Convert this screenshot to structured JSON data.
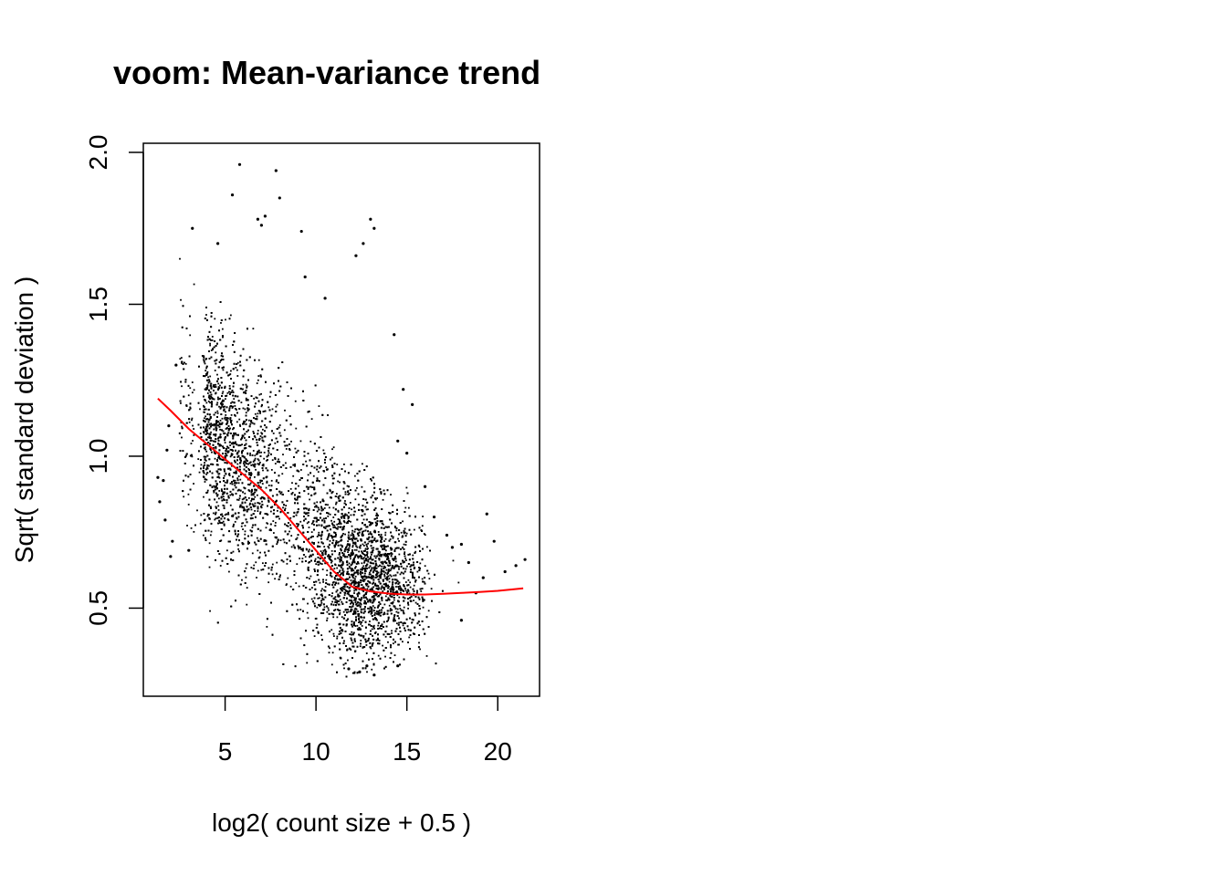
{
  "chart_data": {
    "type": "scatter",
    "title": "voom: Mean-variance trend",
    "xlabel": "log2( count size + 0.5 )",
    "ylabel": "Sqrt( standard deviation )",
    "xlim": [
      0.5,
      22.3
    ],
    "ylim": [
      0.21,
      2.03
    ],
    "x_ticks": [
      5,
      10,
      15,
      20
    ],
    "y_ticks": [
      0.5,
      1.0,
      1.5,
      2.0
    ],
    "x_tick_labels": [
      "5",
      "10",
      "15",
      "20"
    ],
    "y_tick_labels": [
      "0.5",
      "1.0",
      "1.5",
      "2.0"
    ],
    "grid": false,
    "legend": "none",
    "point_color": "#000000",
    "trend_color": "#ff0000",
    "series": [
      {
        "type": "scatter",
        "points": [
          [
            5.8,
            1.96
          ],
          [
            7.8,
            1.94
          ],
          [
            5.4,
            1.86
          ],
          [
            8.0,
            1.85
          ],
          [
            7.2,
            1.79
          ],
          [
            6.8,
            1.78
          ],
          [
            7.0,
            1.76
          ],
          [
            13.0,
            1.78
          ],
          [
            13.2,
            1.75
          ],
          [
            9.2,
            1.74
          ],
          [
            9.4,
            1.59
          ],
          [
            10.5,
            1.52
          ],
          [
            12.2,
            1.66
          ],
          [
            12.6,
            1.7
          ],
          [
            3.2,
            1.75
          ],
          [
            4.6,
            1.7
          ],
          [
            14.3,
            1.4
          ],
          [
            14.8,
            1.22
          ],
          [
            15.3,
            1.17
          ],
          [
            14.5,
            1.05
          ],
          [
            15.0,
            1.01
          ],
          [
            16.0,
            0.9
          ],
          [
            16.5,
            0.8
          ],
          [
            17.2,
            0.74
          ],
          [
            17.5,
            0.7
          ],
          [
            18.0,
            0.71
          ],
          [
            18.4,
            0.65
          ],
          [
            19.4,
            0.81
          ],
          [
            19.8,
            0.72
          ],
          [
            20.4,
            0.62
          ],
          [
            21.0,
            0.64
          ],
          [
            21.5,
            0.66
          ],
          [
            19.2,
            0.6
          ],
          [
            18.8,
            0.55
          ],
          [
            18.0,
            0.46
          ],
          [
            1.3,
            0.93
          ],
          [
            1.4,
            0.85
          ],
          [
            1.7,
            0.79
          ],
          [
            1.6,
            0.92
          ],
          [
            2.0,
            0.67
          ],
          [
            2.1,
            0.72
          ],
          [
            1.9,
            1.1
          ],
          [
            1.8,
            1.02
          ],
          [
            2.3,
            1.3
          ],
          [
            3.0,
            0.69
          ],
          [
            13.2,
            0.28
          ],
          [
            12.4,
            0.29
          ],
          [
            12.8,
            0.31
          ],
          [
            11.8,
            0.3
          ],
          [
            14.5,
            0.31
          ]
        ]
      },
      {
        "type": "line",
        "name": "",
        "points": [
          [
            1.3,
            1.19
          ],
          [
            2.0,
            1.15
          ],
          [
            3.0,
            1.09
          ],
          [
            4.0,
            1.04
          ],
          [
            5.0,
            0.99
          ],
          [
            6.0,
            0.94
          ],
          [
            7.0,
            0.89
          ],
          [
            8.0,
            0.83
          ],
          [
            9.0,
            0.76
          ],
          [
            10.0,
            0.69
          ],
          [
            11.0,
            0.62
          ],
          [
            12.0,
            0.57
          ],
          [
            13.0,
            0.555
          ],
          [
            14.0,
            0.548
          ],
          [
            15.0,
            0.545
          ],
          [
            16.0,
            0.545
          ],
          [
            17.0,
            0.547
          ],
          [
            18.0,
            0.55
          ],
          [
            19.0,
            0.553
          ],
          [
            20.0,
            0.557
          ],
          [
            21.4,
            0.565
          ]
        ]
      }
    ]
  }
}
